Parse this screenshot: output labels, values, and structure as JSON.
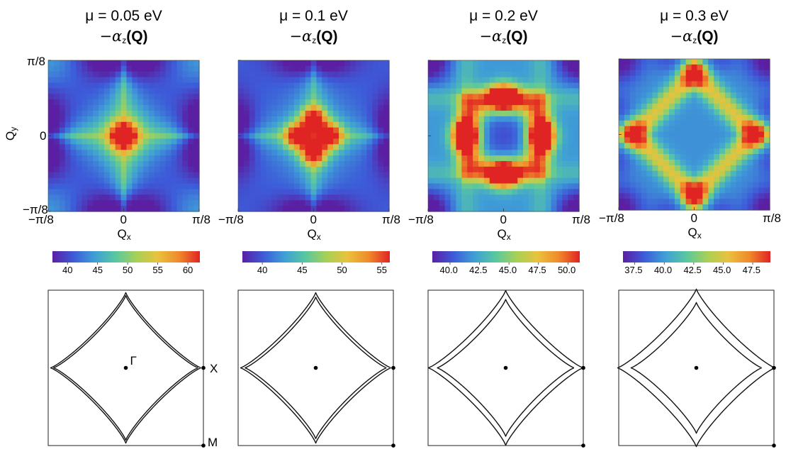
{
  "axes_text": {
    "qx_label": "Q",
    "qx_sub": "x",
    "qy_label": "Q",
    "qy_sub": "y",
    "xtick_left": "−π/8",
    "xtick_mid": "0",
    "xtick_right": "π/8",
    "ytick_top": "π/8",
    "ytick_mid": "0",
    "ytick_bottom": "−π/8"
  },
  "bz_labels": {
    "gamma": "Γ",
    "x_point": "X",
    "m_point": "M"
  },
  "colormap": {
    "name": "rainbow",
    "stops": [
      "#5b1fa3",
      "#3d5bd9",
      "#3f9fd6",
      "#59c7a0",
      "#a7d057",
      "#e9c23d",
      "#f08a2b",
      "#e02424"
    ]
  },
  "chart_data": [
    {
      "type": "heatmap",
      "title_mu": "μ = 0.05 eV",
      "title_quantity": "−α",
      "title_sub": "z",
      "title_arg": "(Q)",
      "xlabel": "Qx",
      "ylabel": "Qy",
      "xlim": [
        "−π/8",
        "π/8"
      ],
      "ylim": [
        "−π/8",
        "π/8"
      ],
      "colorbar_ticks": [
        "40",
        "45",
        "50",
        "55",
        "60"
      ],
      "colorbar_range": [
        37.5,
        62
      ],
      "pattern": "single-peak-center",
      "fermi_surface_gap": 2
    },
    {
      "type": "heatmap",
      "title_mu": "μ = 0.1 eV",
      "title_quantity": "−α",
      "title_sub": "z",
      "title_arg": "(Q)",
      "xlabel": "Qx",
      "ylabel": "Qy",
      "xlim": [
        "−π/8",
        "π/8"
      ],
      "ylim": [
        "−π/8",
        "π/8"
      ],
      "colorbar_ticks": [
        "40",
        "45",
        "50",
        "55"
      ],
      "colorbar_range": [
        37.5,
        56
      ],
      "pattern": "four-lobe-near-center",
      "fermi_surface_gap": 3
    },
    {
      "type": "heatmap",
      "title_mu": "μ = 0.2 eV",
      "title_quantity": "−α",
      "title_sub": "z",
      "title_arg": "(Q)",
      "xlabel": "Qx",
      "ylabel": "Qy",
      "xlim": [
        "−π/8",
        "π/8"
      ],
      "ylim": [
        "−π/8",
        "π/8"
      ],
      "colorbar_ticks": [
        "40.0",
        "42.5",
        "45.0",
        "47.5",
        "50.0"
      ],
      "colorbar_range": [
        38.5,
        51
      ],
      "pattern": "four-peaks-ring",
      "fermi_surface_gap": 6
    },
    {
      "type": "heatmap",
      "title_mu": "μ = 0.3 eV",
      "title_quantity": "−α",
      "title_sub": "z",
      "title_arg": "(Q)",
      "xlabel": "Qx",
      "ylabel": "Qy",
      "xlim": [
        "−π/8",
        "π/8"
      ],
      "ylim": [
        "−π/8",
        "π/8"
      ],
      "colorbar_ticks": [
        "37.5",
        "40.0",
        "42.5",
        "45.0",
        "47.5"
      ],
      "colorbar_range": [
        36.5,
        49
      ],
      "pattern": "four-peaks-outer",
      "fermi_surface_gap": 9
    }
  ]
}
